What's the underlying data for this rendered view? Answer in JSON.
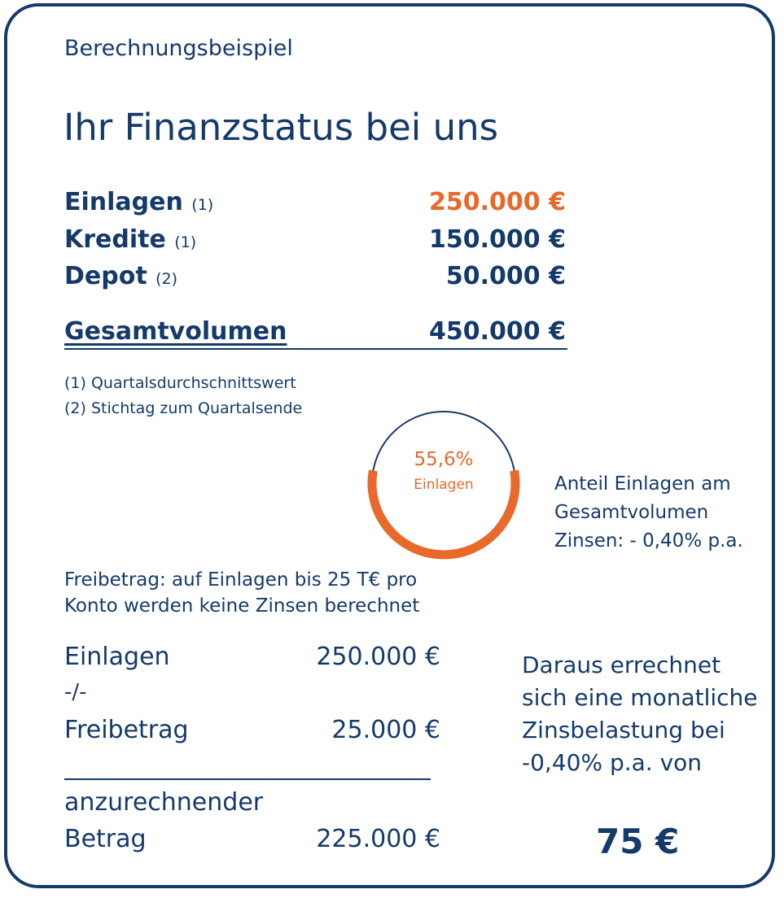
{
  "eyebrow": "Berechnungsbeispiel",
  "title": "Ihr Finanzstatus bei uns",
  "rows": [
    {
      "label": "Einlagen",
      "note": "(1)",
      "value": "250.000 €"
    },
    {
      "label": "Kredite",
      "note": "(1)",
      "value": "150.000 €"
    },
    {
      "label": "Depot",
      "note": "(2)",
      "value": "50.000 €"
    }
  ],
  "total": {
    "label": "Gesamtvolumen",
    "value": "450.000 €"
  },
  "footnotes": [
    "(1) Quartalsdurchschnittswert",
    "(2) Stichtag zum Quartalsende"
  ],
  "ring": {
    "percent": "55,6%",
    "label": "Einlagen",
    "fraction": 0.556
  },
  "share_text": [
    "Anteil Einlagen am",
    "Gesamtvolumen",
    "Zinsen: - 0,40% p.a."
  ],
  "freibetrag_text": [
    "Freibetrag: auf Einlagen bis 25 T€ pro",
    "Konto werden keine Zinsen berechnet"
  ],
  "calc": {
    "einlagen_label": "Einlagen",
    "einlagen_value": "250.000 €",
    "minus": "-/-",
    "freibetrag_label": "Freibetrag",
    "freibetrag_value": "25.000 €",
    "result_label_1": "anzurechnender",
    "result_label_2": "Betrag",
    "result_value": "225.000 €"
  },
  "result_text": [
    "Daraus errechnet",
    "sich eine monatliche",
    "Zinsbelastung bei",
    "-0,40% p.a. von"
  ],
  "result_value": "75 €",
  "colors": {
    "navy": "#143a6b",
    "orange": "#e8692a"
  }
}
